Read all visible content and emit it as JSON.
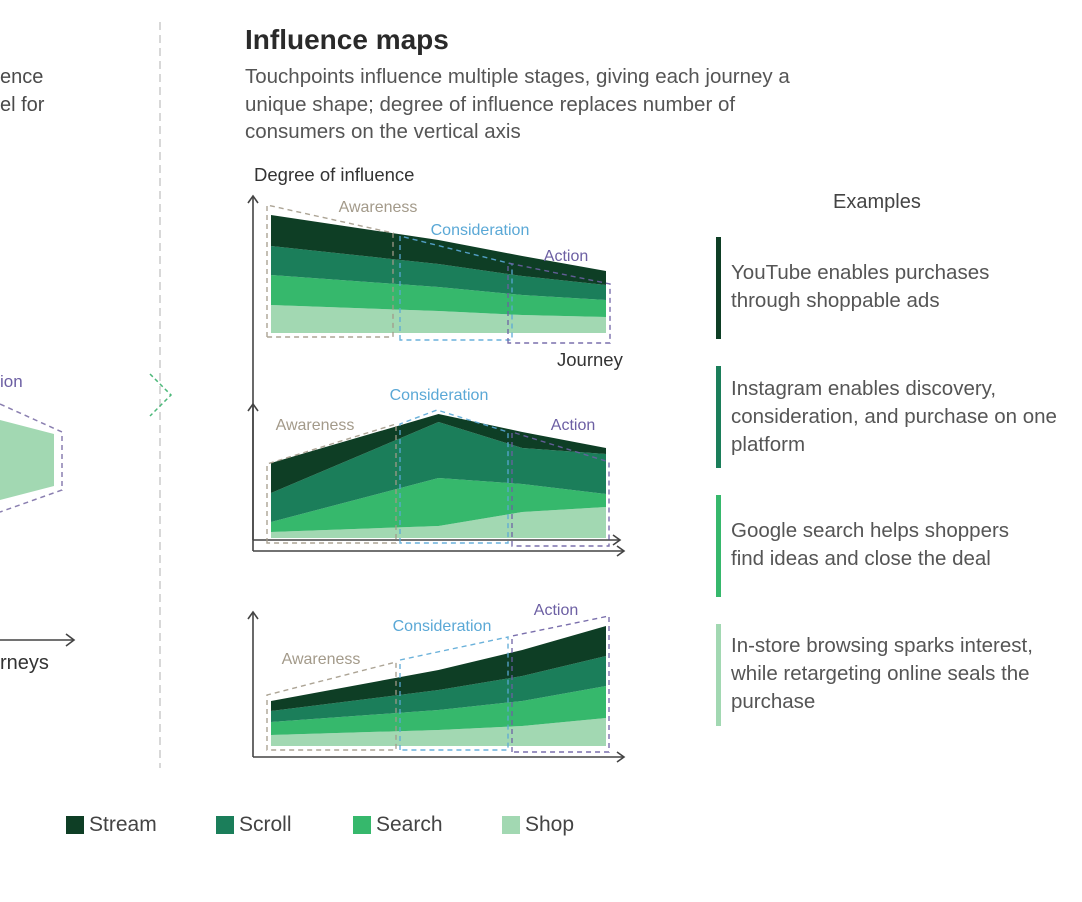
{
  "left_panel": {
    "text_line1": "ence",
    "text_line2": "el for",
    "stage_label": "ion",
    "axis_label": "rneys"
  },
  "title": "Influence maps",
  "subtitle": "Touchpoints influence multiple stages, giving each journey a unique shape; degree of influence replaces number of consumers on the vertical axis",
  "axes": {
    "y_label": "Degree of influence",
    "x_label": "Journey"
  },
  "stages": {
    "awareness": "Awareness",
    "consideration": "Consideration",
    "action": "Action"
  },
  "colors": {
    "stream": "#0e3e25",
    "scroll": "#1b7e5a",
    "search": "#36b86c",
    "shop": "#a2d8b2",
    "awareness_label": "#a39a8a",
    "consideration_label": "#5aa8d6",
    "action_label": "#6c5fa3",
    "divider": "#cccccc",
    "arrow_chevron": "#4db87a"
  },
  "chart_data": [
    {
      "type": "area",
      "stacked": true,
      "x": [
        "Awareness",
        "Consideration",
        "Action"
      ],
      "xlabel": "Journey",
      "ylabel": "Degree of influence",
      "series": [
        {
          "name": "Shop",
          "values": [
            [
              0,
              28
            ],
            [
              0.5,
              22
            ],
            [
              0.75,
              18
            ],
            [
              1,
              16
            ]
          ]
        },
        {
          "name": "Search",
          "values": [
            [
              0,
              30
            ],
            [
              0.5,
              24
            ],
            [
              0.75,
              20
            ],
            [
              1,
              17
            ]
          ]
        },
        {
          "name": "Scroll",
          "values": [
            [
              0,
              29
            ],
            [
              0.5,
              23
            ],
            [
              0.75,
              19
            ],
            [
              1,
              15
            ]
          ]
        },
        {
          "name": "Stream",
          "values": [
            [
              0,
              31
            ],
            [
              0.5,
              24
            ],
            [
              0.75,
              20
            ],
            [
              1,
              14
            ]
          ]
        }
      ],
      "example": "YouTube enables purchases through shoppable ads"
    },
    {
      "type": "area",
      "stacked": true,
      "x": [
        "Awareness",
        "Consideration",
        "Action"
      ],
      "series": [
        {
          "name": "Shop",
          "values": [
            [
              0,
              6
            ],
            [
              0.5,
              12
            ],
            [
              0.75,
              26
            ],
            [
              1,
              31
            ]
          ]
        },
        {
          "name": "Search",
          "values": [
            [
              0,
              10
            ],
            [
              0.5,
              48
            ],
            [
              0.75,
              28
            ],
            [
              1,
              13
            ]
          ]
        },
        {
          "name": "Scroll",
          "values": [
            [
              0,
              29
            ],
            [
              0.5,
              56
            ],
            [
              0.75,
              36
            ],
            [
              1,
              40
            ]
          ]
        },
        {
          "name": "Stream",
          "values": [
            [
              0,
              30
            ],
            [
              0.5,
              8
            ],
            [
              0.75,
              16
            ],
            [
              1,
              6
            ]
          ]
        }
      ],
      "example": "Instagram enables discovery, consideration, and purchase on one platform"
    },
    {
      "type": "area",
      "stacked": true,
      "x": [
        "Awareness",
        "Consideration",
        "Action"
      ],
      "series": [
        {
          "name": "Shop",
          "values": [
            [
              0,
              11
            ],
            [
              0.5,
              16
            ],
            [
              0.75,
              20
            ],
            [
              1,
              28
            ]
          ]
        },
        {
          "name": "Search",
          "values": [
            [
              0,
              13
            ],
            [
              0.5,
              20
            ],
            [
              0.75,
              25
            ],
            [
              1,
              32
            ]
          ]
        },
        {
          "name": "Scroll",
          "values": [
            [
              0,
              11
            ],
            [
              0.5,
              20
            ],
            [
              0.75,
              25
            ],
            [
              1,
              30
            ]
          ]
        },
        {
          "name": "Stream",
          "values": [
            [
              0,
              10
            ],
            [
              0.5,
              20
            ],
            [
              0.75,
              26
            ],
            [
              1,
              30
            ]
          ]
        }
      ],
      "example": "Google search helps shoppers find ideas and close the deal"
    }
  ],
  "examples_title": "Examples",
  "examples": [
    {
      "text": "YouTube enables purchases through shoppable ads",
      "color": "#0e3e25"
    },
    {
      "text": "Instagram enables discovery, consideration, and purchase on one platform",
      "color": "#1b7e5a"
    },
    {
      "text": "Google search helps shoppers find ideas and close the deal",
      "color": "#36b86c"
    },
    {
      "text": "In-store browsing sparks interest, while retargeting online seals the purchase",
      "color": "#a2d8b2"
    }
  ],
  "legend": [
    {
      "label": "Stream",
      "color": "#0e3e25"
    },
    {
      "label": "Scroll",
      "color": "#1b7e5a"
    },
    {
      "label": "Search",
      "color": "#36b86c"
    },
    {
      "label": "Shop",
      "color": "#a2d8b2"
    }
  ]
}
